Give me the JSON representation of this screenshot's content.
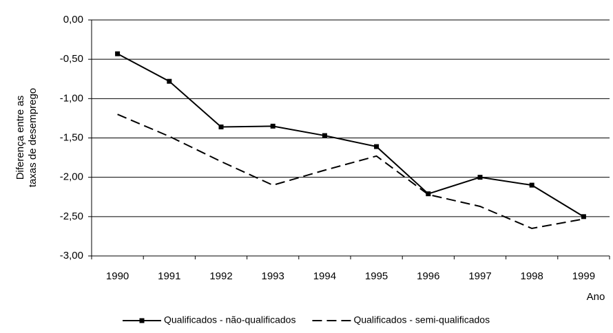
{
  "chart_data": {
    "type": "line",
    "y_label": [
      "Diferença entre as",
      "taxas de desemprego"
    ],
    "x_label": "Ano",
    "categories": [
      "1990",
      "1991",
      "1992",
      "1993",
      "1994",
      "1995",
      "1996",
      "1997",
      "1998",
      "1999"
    ],
    "series": [
      {
        "name": "Qualificados - não-qualificados",
        "color": "#000000",
        "dash": "solid",
        "marker": "square",
        "values": [
          -0.43,
          -0.78,
          -1.36,
          -1.35,
          -1.47,
          -1.61,
          -2.21,
          -2.0,
          -2.1,
          -2.5
        ]
      },
      {
        "name": "Qualificados - semi-qualificados",
        "color": "#000000",
        "dash": "dashed",
        "marker": "none",
        "values": [
          -1.2,
          -1.48,
          -1.8,
          -2.1,
          -1.91,
          -1.73,
          -2.22,
          -2.37,
          -2.65,
          -2.53
        ]
      }
    ],
    "ylim": [
      -3,
      0
    ],
    "yticks": [
      {
        "value": 0,
        "label": "0,00"
      },
      {
        "value": -0.5,
        "label": "-0,50"
      },
      {
        "value": -1,
        "label": "-1,00"
      },
      {
        "value": -1.5,
        "label": "-1,50"
      },
      {
        "value": -2,
        "label": "-2,00"
      },
      {
        "value": -2.5,
        "label": "-2,50"
      },
      {
        "value": -3,
        "label": "-3,00"
      }
    ],
    "grid": true
  }
}
